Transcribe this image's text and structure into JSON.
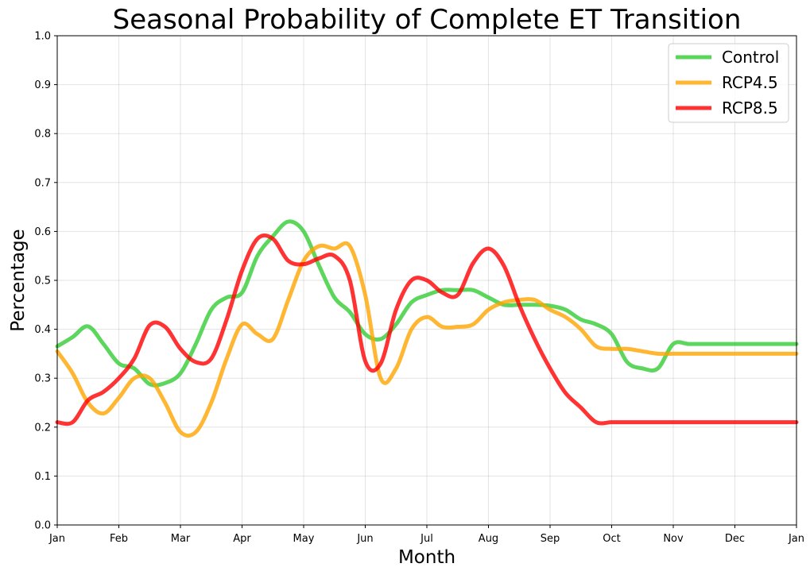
{
  "chart_data": {
    "type": "line",
    "title": "Seasonal Probability of Complete ET Transition",
    "xlabel": "Month",
    "ylabel": "Percentage",
    "ylim": [
      0,
      1
    ],
    "xlim": [
      0,
      12
    ],
    "grid": true,
    "legend_position": "top-right",
    "x_ticks": [
      {
        "value": 0,
        "label": "Jan"
      },
      {
        "value": 1,
        "label": "Feb"
      },
      {
        "value": 2,
        "label": "Mar"
      },
      {
        "value": 3,
        "label": "Apr"
      },
      {
        "value": 4,
        "label": "May"
      },
      {
        "value": 5,
        "label": "Jun"
      },
      {
        "value": 6,
        "label": "Jul"
      },
      {
        "value": 7,
        "label": "Aug"
      },
      {
        "value": 8,
        "label": "Sep"
      },
      {
        "value": 9,
        "label": "Oct"
      },
      {
        "value": 10,
        "label": "Nov"
      },
      {
        "value": 11,
        "label": "Dec"
      },
      {
        "value": 12,
        "label": "Jan"
      }
    ],
    "y_ticks": [
      {
        "value": 0.0,
        "label": "0.0"
      },
      {
        "value": 0.1,
        "label": "0.1"
      },
      {
        "value": 0.2,
        "label": "0.2"
      },
      {
        "value": 0.3,
        "label": "0.3"
      },
      {
        "value": 0.4,
        "label": "0.4"
      },
      {
        "value": 0.5,
        "label": "0.5"
      },
      {
        "value": 0.6,
        "label": "0.6"
      },
      {
        "value": 0.7,
        "label": "0.7"
      },
      {
        "value": 0.8,
        "label": "0.8"
      },
      {
        "value": 0.9,
        "label": "0.9"
      },
      {
        "value": 1.0,
        "label": "1.0"
      }
    ],
    "x": [
      0,
      0.25,
      0.5,
      0.75,
      1,
      1.25,
      1.5,
      1.75,
      2,
      2.25,
      2.5,
      2.75,
      3,
      3.25,
      3.5,
      3.75,
      4,
      4.25,
      4.5,
      4.75,
      5,
      5.25,
      5.5,
      5.75,
      6,
      6.25,
      6.5,
      6.75,
      7,
      7.25,
      7.5,
      7.75,
      8,
      8.25,
      8.5,
      8.75,
      9,
      9.25,
      9.5,
      9.75,
      10,
      10.25,
      10.5,
      10.75,
      11,
      11.25,
      11.5,
      11.75,
      12
    ],
    "series": [
      {
        "name": "Control",
        "color": "#33cc33",
        "values": [
          0.365,
          0.384,
          0.406,
          0.37,
          0.33,
          0.32,
          0.288,
          0.29,
          0.31,
          0.37,
          0.44,
          0.465,
          0.475,
          0.55,
          0.59,
          0.62,
          0.6,
          0.53,
          0.465,
          0.435,
          0.39,
          0.38,
          0.41,
          0.455,
          0.47,
          0.48,
          0.48,
          0.48,
          0.465,
          0.45,
          0.45,
          0.45,
          0.448,
          0.44,
          0.42,
          0.41,
          0.39,
          0.333,
          0.32,
          0.32,
          0.37,
          0.37,
          0.37,
          0.37,
          0.37,
          0.37,
          0.37,
          0.37,
          0.37
        ]
      },
      {
        "name": "RCP4.5",
        "color": "#ffa500",
        "values": [
          0.355,
          0.31,
          0.25,
          0.228,
          0.26,
          0.3,
          0.3,
          0.25,
          0.19,
          0.19,
          0.25,
          0.34,
          0.41,
          0.39,
          0.38,
          0.46,
          0.54,
          0.57,
          0.565,
          0.57,
          0.47,
          0.3,
          0.32,
          0.4,
          0.425,
          0.405,
          0.405,
          0.41,
          0.44,
          0.455,
          0.46,
          0.46,
          0.44,
          0.425,
          0.4,
          0.365,
          0.36,
          0.36,
          0.355,
          0.35,
          0.35,
          0.35,
          0.35,
          0.35,
          0.35,
          0.35,
          0.35,
          0.35,
          0.35
        ]
      },
      {
        "name": "RCP8.5",
        "color": "#ff0000",
        "values": [
          0.21,
          0.21,
          0.255,
          0.272,
          0.3,
          0.34,
          0.408,
          0.405,
          0.36,
          0.333,
          0.34,
          0.42,
          0.52,
          0.585,
          0.585,
          0.54,
          0.533,
          0.545,
          0.55,
          0.5,
          0.335,
          0.33,
          0.44,
          0.5,
          0.5,
          0.475,
          0.47,
          0.535,
          0.565,
          0.53,
          0.45,
          0.38,
          0.32,
          0.27,
          0.24,
          0.21,
          0.21,
          0.21,
          0.21,
          0.21,
          0.21,
          0.21,
          0.21,
          0.21,
          0.21,
          0.21,
          0.21,
          0.21,
          0.21
        ]
      }
    ]
  }
}
